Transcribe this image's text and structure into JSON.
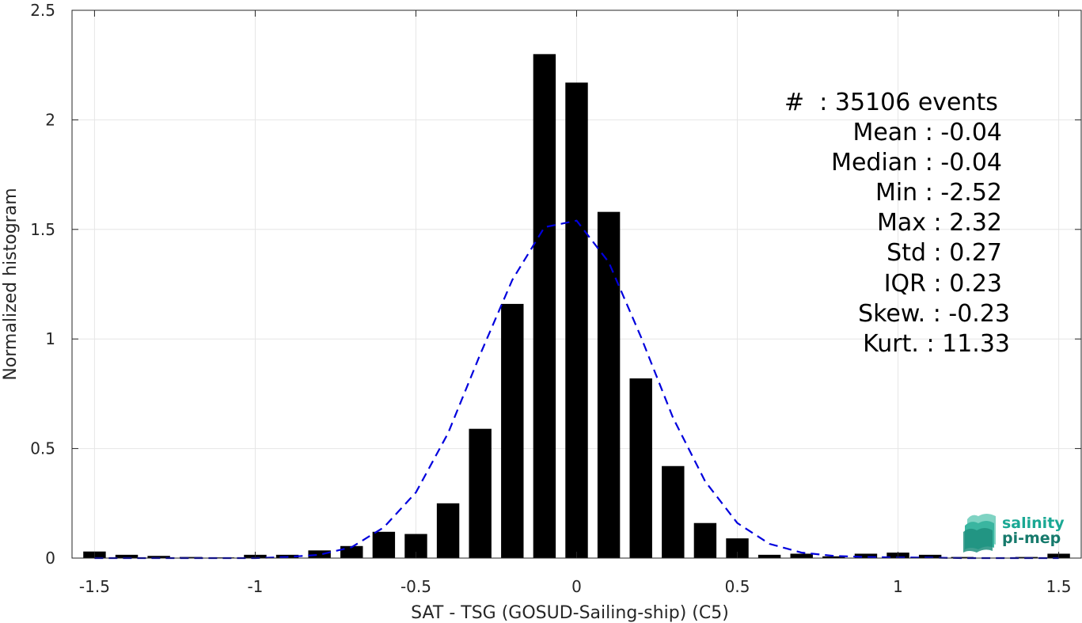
{
  "chart_data": {
    "type": "bar",
    "xlabel": "SAT - TSG (GOSUD-Sailing-ship) (C5)",
    "ylabel": "Normalized histogram",
    "xlim": [
      -1.57,
      1.57
    ],
    "ylim": [
      0,
      2.5
    ],
    "x_ticks": [
      -1.5,
      -1,
      -0.5,
      0,
      0.5,
      1,
      1.5
    ],
    "x_tick_labels": [
      "-1.5",
      "-1",
      "-0.5",
      "0",
      "0.5",
      "1",
      "1.5"
    ],
    "y_ticks": [
      0,
      0.5,
      1,
      1.5,
      2,
      2.5
    ],
    "y_tick_labels": [
      "0",
      "0.5",
      "1",
      "1.5",
      "2",
      "2.5"
    ],
    "grid": true,
    "bar_color": "#000000",
    "bin_width": 0.1,
    "bars": {
      "x": [
        -1.5,
        -1.4,
        -1.3,
        -1.2,
        -1.1,
        -1.0,
        -0.9,
        -0.8,
        -0.7,
        -0.6,
        -0.5,
        -0.4,
        -0.3,
        -0.2,
        -0.1,
        0.0,
        0.1,
        0.2,
        0.3,
        0.4,
        0.5,
        0.6,
        0.7,
        0.8,
        0.9,
        1.0,
        1.1,
        1.2,
        1.3,
        1.4,
        1.5
      ],
      "values": [
        0.03,
        0.015,
        0.01,
        0.005,
        0.003,
        0.015,
        0.015,
        0.035,
        0.055,
        0.12,
        0.11,
        0.25,
        0.59,
        1.16,
        2.3,
        2.17,
        1.58,
        0.82,
        0.42,
        0.16,
        0.09,
        0.015,
        0.02,
        0.008,
        0.02,
        0.025,
        0.015,
        0.005,
        0.002,
        0.005,
        0.02
      ]
    },
    "fit": {
      "style": "dashed",
      "color": "#0000dd",
      "x": [
        -1.5,
        -1.4,
        -1.3,
        -1.2,
        -1.1,
        -1.0,
        -0.9,
        -0.8,
        -0.7,
        -0.6,
        -0.5,
        -0.4,
        -0.3,
        -0.2,
        -0.1,
        0.0,
        0.1,
        0.2,
        0.3,
        0.4,
        0.5,
        0.6,
        0.7,
        0.8,
        0.9,
        1.0,
        1.1,
        1.2,
        1.3,
        1.4,
        1.5
      ],
      "values": [
        0.0,
        0.0,
        0.0,
        0.0,
        0.0,
        0.0,
        0.005,
        0.015,
        0.05,
        0.14,
        0.3,
        0.57,
        0.93,
        1.27,
        1.51,
        1.54,
        1.35,
        1.01,
        0.64,
        0.35,
        0.16,
        0.065,
        0.025,
        0.01,
        0.005,
        0.003,
        0.002,
        0.0,
        0.0,
        0.0,
        0.0
      ]
    }
  },
  "stats": [
    {
      "label": "#",
      "sep": " : ",
      "value": "35106 events"
    },
    {
      "label": "Mean",
      "sep": " : ",
      "value": "-0.04"
    },
    {
      "label": "Median",
      "sep": " : ",
      "value": "-0.04"
    },
    {
      "label": "Min",
      "sep": " : ",
      "value": "-2.52"
    },
    {
      "label": "Max",
      "sep": " : ",
      "value": "2.32"
    },
    {
      "label": "Std",
      "sep": " : ",
      "value": "0.27"
    },
    {
      "label": "IQR",
      "sep": " : ",
      "value": "0.23"
    },
    {
      "label": "Skew.",
      "sep": " : ",
      "value": "-0.23"
    },
    {
      "label": "Kurt.",
      "sep": " : ",
      "value": "11.33"
    }
  ],
  "logo": {
    "line1": "salinity",
    "line2": "pi-mep",
    "color1": "#1aa894",
    "color2": "#167a6c"
  }
}
